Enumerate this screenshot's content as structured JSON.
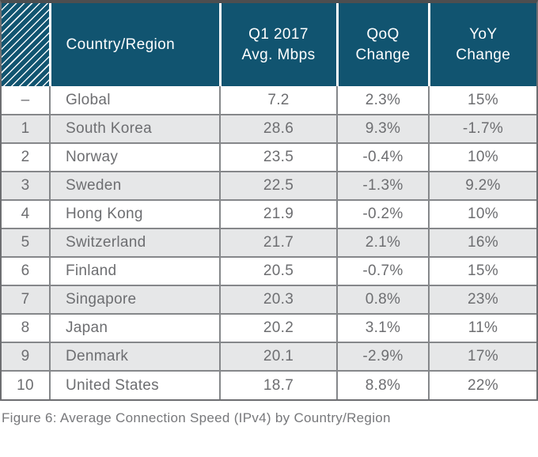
{
  "colors": {
    "header_bg": "#115470",
    "header_text": "#ffffff",
    "alt_row_bg": "#e6e7e8",
    "grid_line": "#85878a",
    "outer_border": "#6d6e71",
    "outer_border_top": "#4d4e50",
    "body_text": "#6d6e71",
    "caption_text": "#77787b"
  },
  "chart_data": {
    "type": "table",
    "caption": "Figure 6: Average Connection Speed (IPv4) by Country/Region",
    "header": {
      "rank": "",
      "country": "Country/Region",
      "avg_mbps": "Q1 2017\nAvg. Mbps",
      "qoq": "QoQ\nChange",
      "yoy": "YoY\nChange"
    },
    "rows": [
      {
        "rank": "–",
        "country": "Global",
        "avg_mbps": "7.2",
        "qoq": "2.3%",
        "yoy": "15%"
      },
      {
        "rank": "1",
        "country": "South Korea",
        "avg_mbps": "28.6",
        "qoq": "9.3%",
        "yoy": "-1.7%"
      },
      {
        "rank": "2",
        "country": "Norway",
        "avg_mbps": "23.5",
        "qoq": "-0.4%",
        "yoy": "10%"
      },
      {
        "rank": "3",
        "country": "Sweden",
        "avg_mbps": "22.5",
        "qoq": "-1.3%",
        "yoy": "9.2%"
      },
      {
        "rank": "4",
        "country": "Hong Kong",
        "avg_mbps": "21.9",
        "qoq": "-0.2%",
        "yoy": "10%"
      },
      {
        "rank": "5",
        "country": "Switzerland",
        "avg_mbps": "21.7",
        "qoq": "2.1%",
        "yoy": "16%"
      },
      {
        "rank": "6",
        "country": "Finland",
        "avg_mbps": "20.5",
        "qoq": "-0.7%",
        "yoy": "15%"
      },
      {
        "rank": "7",
        "country": "Singapore",
        "avg_mbps": "20.3",
        "qoq": "0.8%",
        "yoy": "23%"
      },
      {
        "rank": "8",
        "country": "Japan",
        "avg_mbps": "20.2",
        "qoq": "3.1%",
        "yoy": "11%"
      },
      {
        "rank": "9",
        "country": "Denmark",
        "avg_mbps": "20.1",
        "qoq": "-2.9%",
        "yoy": "17%"
      },
      {
        "rank": "10",
        "country": "United States",
        "avg_mbps": "18.7",
        "qoq": "8.8%",
        "yoy": "22%"
      }
    ]
  }
}
